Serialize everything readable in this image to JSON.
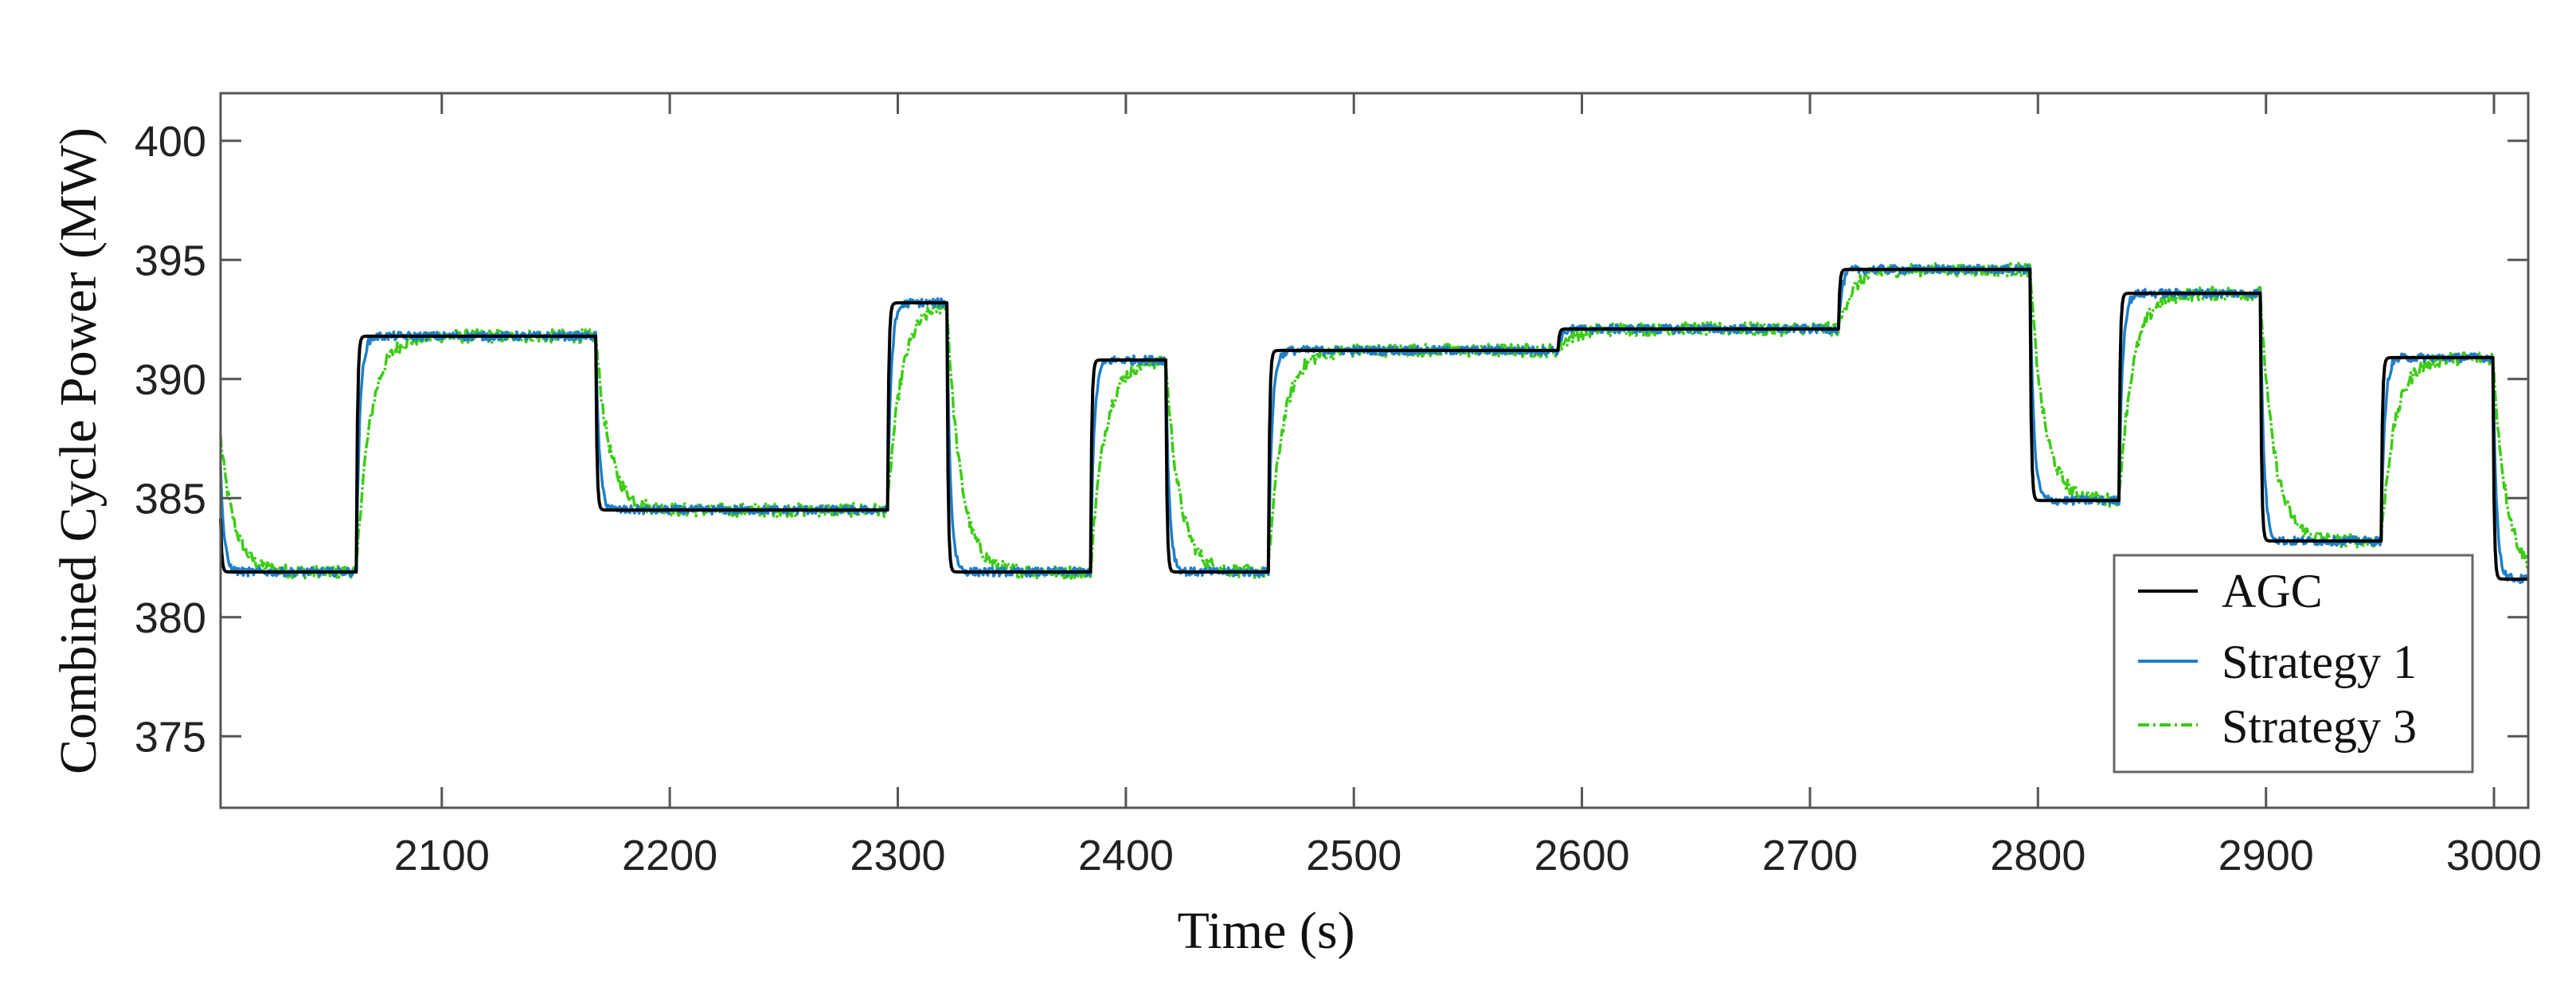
{
  "chart_data": {
    "type": "line",
    "title": "",
    "xlabel": "Time (s)",
    "ylabel": "Combined Cycle Power (MW)",
    "xlim": [
      2003,
      3015
    ],
    "ylim": [
      372,
      402
    ],
    "x_ticks": [
      2100,
      2200,
      2300,
      2400,
      2500,
      2600,
      2700,
      2800,
      2900,
      3000
    ],
    "y_ticks": [
      375,
      380,
      385,
      390,
      395,
      400
    ],
    "x_tick_labels": [
      "2100",
      "2200",
      "2300",
      "2400",
      "2500",
      "2600",
      "2700",
      "2800",
      "2900",
      "3000"
    ],
    "y_tick_labels": [
      "375",
      "380",
      "385",
      "390",
      "395",
      "400"
    ],
    "grid": false,
    "legend_position": "bottom-right",
    "steps": [
      {
        "t": 2003,
        "p": 381.9
      },
      {
        "t": 2063,
        "p": 391.8
      },
      {
        "t": 2168,
        "p": 384.5
      },
      {
        "t": 2296,
        "p": 393.2
      },
      {
        "t": 2322,
        "p": 381.9
      },
      {
        "t": 2385,
        "p": 390.8
      },
      {
        "t": 2418,
        "p": 381.9
      },
      {
        "t": 2463,
        "p": 391.2
      },
      {
        "t": 2590,
        "p": 392.1
      },
      {
        "t": 2713,
        "p": 394.6
      },
      {
        "t": 2797,
        "p": 384.9
      },
      {
        "t": 2836,
        "p": 393.6
      },
      {
        "t": 2898,
        "p": 383.2
      },
      {
        "t": 2951,
        "p": 390.9
      },
      {
        "t": 3000,
        "p": 381.6
      }
    ],
    "initial_value": 388.0,
    "series": [
      {
        "name": "AGC",
        "color": "#000000",
        "style": "solid",
        "tau_s": 0.5,
        "noise_mw": 0.0
      },
      {
        "name": "Strategy 1",
        "color": "#1f7fc8",
        "style": "solid",
        "tau_s": 1.5,
        "noise_mw": 0.18
      },
      {
        "name": "Strategy 3",
        "color": "#3ccc14",
        "style": "dash-dot",
        "tau_s": 6,
        "noise_mw": 0.28
      }
    ]
  }
}
